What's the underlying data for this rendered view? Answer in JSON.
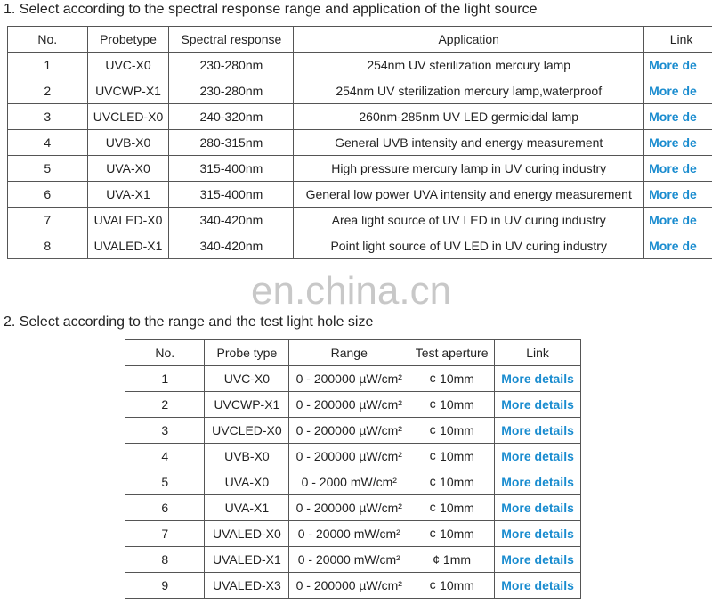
{
  "section1": {
    "title": "1. Select according to the spectral response range and application of the light source",
    "headers": [
      "No.",
      "Probetype",
      "Spectral   response",
      "Application",
      "Link"
    ],
    "rows": [
      [
        "1",
        "UVC-X0",
        "230-280nm",
        "254nm UV sterilization mercury lamp",
        "More de"
      ],
      [
        "2",
        "UVCWP-X1",
        "230-280nm",
        "254nm UV sterilization mercury lamp,waterproof",
        "More de"
      ],
      [
        "3",
        "UVCLED-X0",
        "240-320nm",
        "260nm-285nm UV LED germicidal lamp",
        "More de"
      ],
      [
        "4",
        "UVB-X0",
        "280-315nm",
        "General UVB intensity and energy measurement",
        "More de"
      ],
      [
        "5",
        "UVA-X0",
        "315-400nm",
        "High pressure mercury lamp in UV curing industry",
        "More de"
      ],
      [
        "6",
        "UVA-X1",
        "315-400nm",
        "General low power UVA intensity and energy measurement",
        "More de"
      ],
      [
        "7",
        "UVALED-X0",
        "340-420nm",
        "Area light source of UV LED in UV curing industry",
        "More de"
      ],
      [
        "8",
        "UVALED-X1",
        "340-420nm",
        "Point light source of UV LED in UV curing industry",
        "More de"
      ]
    ]
  },
  "watermark": "en.china.cn",
  "section2": {
    "title": "2. Select according to the range and the test light hole size",
    "headers": [
      "No.",
      "Probe type",
      "Range",
      "Test aperture",
      "Link"
    ],
    "rows": [
      [
        "1",
        "UVC-X0",
        "0 - 200000 µW/cm²",
        "¢ 10mm",
        "More details"
      ],
      [
        "2",
        "UVCWP-X1",
        "0 - 200000 µW/cm²",
        "¢ 10mm",
        "More details"
      ],
      [
        "3",
        "UVCLED-X0",
        "0 - 200000 µW/cm²",
        "¢ 10mm",
        "More details"
      ],
      [
        "4",
        "UVB-X0",
        "0 - 200000 µW/cm²",
        "¢ 10mm",
        "More details"
      ],
      [
        "5",
        "UVA-X0",
        "0 - 2000 mW/cm²",
        "¢ 10mm",
        "More details"
      ],
      [
        "6",
        "UVA-X1",
        "0 - 200000 µW/cm²",
        "¢ 10mm",
        "More details"
      ],
      [
        "7",
        "UVALED-X0",
        "0 - 20000 mW/cm²",
        "¢ 10mm",
        "More details"
      ],
      [
        "8",
        "UVALED-X1",
        "0 - 20000 mW/cm²",
        "¢ 1mm",
        "More details"
      ],
      [
        "9",
        "UVALED-X3",
        "0 - 200000 µW/cm²",
        "¢ 10mm",
        "More details"
      ]
    ]
  },
  "colors": {
    "link": "#1a8ccf"
  }
}
